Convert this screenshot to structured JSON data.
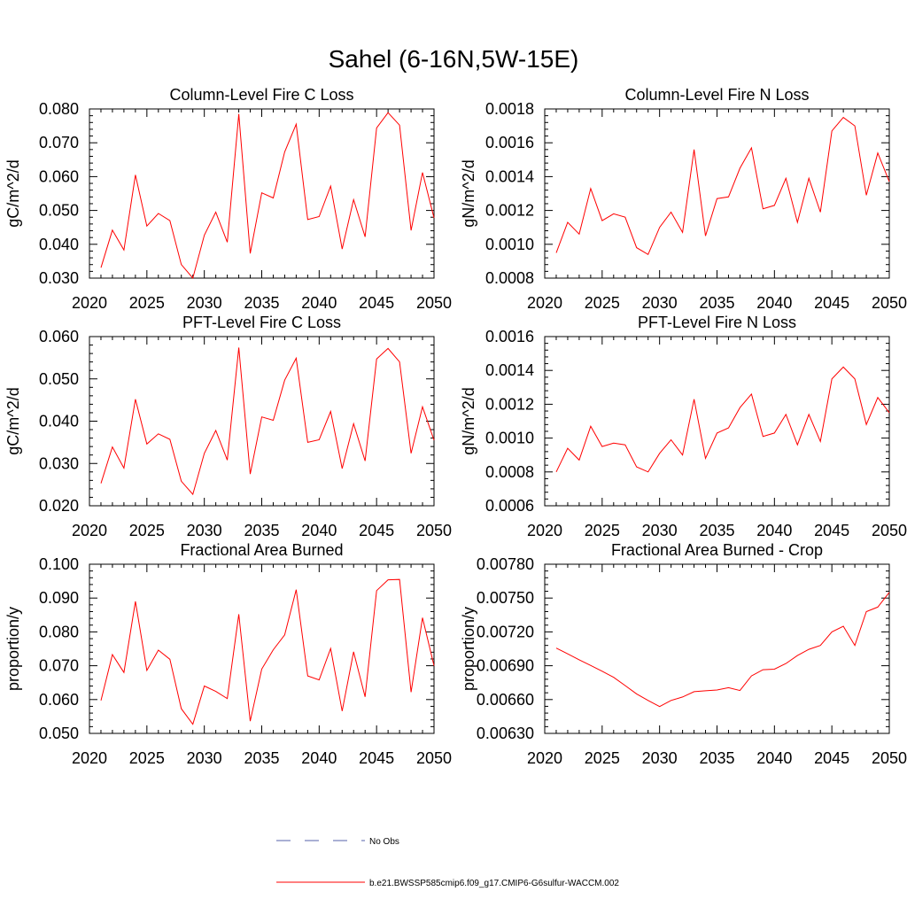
{
  "figure": {
    "title": "Sahel (6-16N,5W-15E)"
  },
  "legend": {
    "placement": "bottom-center",
    "entries": [
      {
        "label": "No Obs",
        "color": "#5560a8",
        "style": "dashed"
      },
      {
        "label": "b.e21.BWSSP585cmip6.f09_g17.CMIP6-G6sulfur-WACCM.002",
        "color": "#ff0000",
        "style": "solid"
      }
    ]
  },
  "chart_data": [
    {
      "type": "line",
      "title": "Column-Level Fire C Loss",
      "xlabel": "",
      "ylabel": "gC/m^2/d",
      "xlim": [
        2020,
        2050
      ],
      "ylim": [
        0.03,
        0.08
      ],
      "x_ticks": [
        "2020",
        "2025",
        "2030",
        "2035",
        "2040",
        "2045",
        "2050"
      ],
      "y_ticks": [
        "0.030",
        "0.040",
        "0.050",
        "0.060",
        "0.070",
        "0.080"
      ],
      "x": [
        2021,
        2022,
        2023,
        2024,
        2025,
        2026,
        2027,
        2028,
        2029,
        2030,
        2031,
        2032,
        2033,
        2034,
        2035,
        2036,
        2037,
        2038,
        2039,
        2040,
        2041,
        2042,
        2043,
        2044,
        2045,
        2046,
        2047,
        2048,
        2049,
        2050
      ],
      "series": [
        {
          "values": [
            0.0331,
            0.0442,
            0.0383,
            0.0605,
            0.0454,
            0.0491,
            0.047,
            0.034,
            0.03,
            0.0427,
            0.0495,
            0.0406,
            0.0785,
            0.0373,
            0.0552,
            0.0537,
            0.0673,
            0.0755,
            0.0473,
            0.0482,
            0.0572,
            0.0386,
            0.0532,
            0.0422,
            0.0744,
            0.0789,
            0.0752,
            0.0441,
            0.0612,
            0.0478
          ],
          "color": "#ff0000"
        }
      ]
    },
    {
      "type": "line",
      "title": "Column-Level Fire N Loss",
      "xlabel": "",
      "ylabel": "gN/m^2/d",
      "xlim": [
        2020,
        2050
      ],
      "ylim": [
        0.0008,
        0.0018
      ],
      "x_ticks": [
        "2020",
        "2025",
        "2030",
        "2035",
        "2040",
        "2045",
        "2050"
      ],
      "y_ticks": [
        "0.0008",
        "0.0010",
        "0.0012",
        "0.0014",
        "0.0016",
        "0.0018"
      ],
      "x": [
        2021,
        2022,
        2023,
        2024,
        2025,
        2026,
        2027,
        2028,
        2029,
        2030,
        2031,
        2032,
        2033,
        2034,
        2035,
        2036,
        2037,
        2038,
        2039,
        2040,
        2041,
        2042,
        2043,
        2044,
        2045,
        2046,
        2047,
        2048,
        2049,
        2050
      ],
      "series": [
        {
          "values": [
            0.00095,
            0.00113,
            0.00106,
            0.00133,
            0.00114,
            0.00118,
            0.00116,
            0.00098,
            0.00094,
            0.0011,
            0.00119,
            0.00107,
            0.00156,
            0.00105,
            0.00127,
            0.00128,
            0.00145,
            0.00157,
            0.00121,
            0.00123,
            0.00139,
            0.00113,
            0.00139,
            0.00119,
            0.00167,
            0.00175,
            0.0017,
            0.00129,
            0.00154,
            0.00137
          ],
          "color": "#ff0000"
        }
      ]
    },
    {
      "type": "line",
      "title": "PFT-Level Fire C Loss",
      "xlabel": "",
      "ylabel": "gC/m^2/d",
      "xlim": [
        2020,
        2050
      ],
      "ylim": [
        0.02,
        0.06
      ],
      "x_ticks": [
        "2020",
        "2025",
        "2030",
        "2035",
        "2040",
        "2045",
        "2050"
      ],
      "y_ticks": [
        "0.020",
        "0.030",
        "0.040",
        "0.050",
        "0.060"
      ],
      "x": [
        2021,
        2022,
        2023,
        2024,
        2025,
        2026,
        2027,
        2028,
        2029,
        2030,
        2031,
        2032,
        2033,
        2034,
        2035,
        2036,
        2037,
        2038,
        2039,
        2040,
        2041,
        2042,
        2043,
        2044,
        2045,
        2046,
        2047,
        2048,
        2049,
        2050
      ],
      "series": [
        {
          "values": [
            0.0253,
            0.0339,
            0.0289,
            0.0452,
            0.0346,
            0.037,
            0.0357,
            0.0258,
            0.0227,
            0.0324,
            0.0378,
            0.0308,
            0.0574,
            0.0275,
            0.041,
            0.0402,
            0.0497,
            0.0549,
            0.035,
            0.0356,
            0.0423,
            0.0288,
            0.0394,
            0.0306,
            0.0547,
            0.0572,
            0.054,
            0.0324,
            0.0434,
            0.0355
          ],
          "color": "#ff0000"
        }
      ]
    },
    {
      "type": "line",
      "title": "PFT-Level Fire N Loss",
      "xlabel": "",
      "ylabel": "gN/m^2/d",
      "xlim": [
        2020,
        2050
      ],
      "ylim": [
        0.0006,
        0.0016
      ],
      "x_ticks": [
        "2020",
        "2025",
        "2030",
        "2035",
        "2040",
        "2045",
        "2050"
      ],
      "y_ticks": [
        "0.0006",
        "0.0008",
        "0.0010",
        "0.0012",
        "0.0014",
        "0.0016"
      ],
      "x": [
        2021,
        2022,
        2023,
        2024,
        2025,
        2026,
        2027,
        2028,
        2029,
        2030,
        2031,
        2032,
        2033,
        2034,
        2035,
        2036,
        2037,
        2038,
        2039,
        2040,
        2041,
        2042,
        2043,
        2044,
        2045,
        2046,
        2047,
        2048,
        2049,
        2050
      ],
      "series": [
        {
          "values": [
            0.0008,
            0.00094,
            0.00087,
            0.00107,
            0.00095,
            0.00097,
            0.00096,
            0.00083,
            0.0008,
            0.00091,
            0.00099,
            0.0009,
            0.00123,
            0.00088,
            0.00103,
            0.00106,
            0.00118,
            0.00126,
            0.00101,
            0.00103,
            0.00114,
            0.00096,
            0.00114,
            0.00098,
            0.00135,
            0.00142,
            0.00135,
            0.00108,
            0.00124,
            0.00115
          ],
          "color": "#ff0000"
        }
      ]
    },
    {
      "type": "line",
      "title": "Fractional Area Burned",
      "xlabel": "",
      "ylabel": "proportion/y",
      "xlim": [
        2020,
        2050
      ],
      "ylim": [
        0.05,
        0.1
      ],
      "x_ticks": [
        "2020",
        "2025",
        "2030",
        "2035",
        "2040",
        "2045",
        "2050"
      ],
      "y_ticks": [
        "0.050",
        "0.060",
        "0.070",
        "0.080",
        "0.090",
        "0.100"
      ],
      "x": [
        2021,
        2022,
        2023,
        2024,
        2025,
        2026,
        2027,
        2028,
        2029,
        2030,
        2031,
        2032,
        2033,
        2034,
        2035,
        2036,
        2037,
        2038,
        2039,
        2040,
        2041,
        2042,
        2043,
        2044,
        2045,
        2046,
        2047,
        2048,
        2049,
        2050
      ],
      "series": [
        {
          "values": [
            0.0597,
            0.0733,
            0.068,
            0.089,
            0.0686,
            0.0746,
            0.0719,
            0.0573,
            0.0527,
            0.064,
            0.0624,
            0.0603,
            0.0852,
            0.0536,
            0.069,
            0.0747,
            0.0791,
            0.0925,
            0.067,
            0.0658,
            0.0751,
            0.0566,
            0.0741,
            0.0608,
            0.0922,
            0.0954,
            0.0955,
            0.0622,
            0.0842,
            0.07
          ],
          "color": "#ff0000"
        }
      ]
    },
    {
      "type": "line",
      "title": "Fractional Area Burned - Crop",
      "xlabel": "",
      "ylabel": "proportion/y",
      "xlim": [
        2020,
        2050
      ],
      "ylim": [
        0.0063,
        0.0078
      ],
      "x_ticks": [
        "2020",
        "2025",
        "2030",
        "2035",
        "2040",
        "2045",
        "2050"
      ],
      "y_ticks": [
        "0.00630",
        "0.00660",
        "0.00690",
        "0.00720",
        "0.00750",
        "0.00780"
      ],
      "x": [
        2021,
        2022,
        2023,
        2024,
        2025,
        2026,
        2027,
        2028,
        2029,
        2030,
        2031,
        2032,
        2033,
        2034,
        2035,
        2036,
        2037,
        2038,
        2039,
        2040,
        2041,
        2042,
        2043,
        2044,
        2045,
        2046,
        2047,
        2048,
        2049,
        2050
      ],
      "series": [
        {
          "values": [
            0.007056,
            0.007005,
            0.006953,
            0.006902,
            0.006851,
            0.006797,
            0.006724,
            0.00665,
            0.006592,
            0.006538,
            0.006592,
            0.006623,
            0.00667,
            0.006678,
            0.006685,
            0.006705,
            0.00668,
            0.00681,
            0.006865,
            0.006869,
            0.00692,
            0.00699,
            0.007045,
            0.00708,
            0.0072,
            0.00725,
            0.00708,
            0.00738,
            0.00742,
            0.00755
          ],
          "color": "#ff0000"
        }
      ]
    }
  ]
}
